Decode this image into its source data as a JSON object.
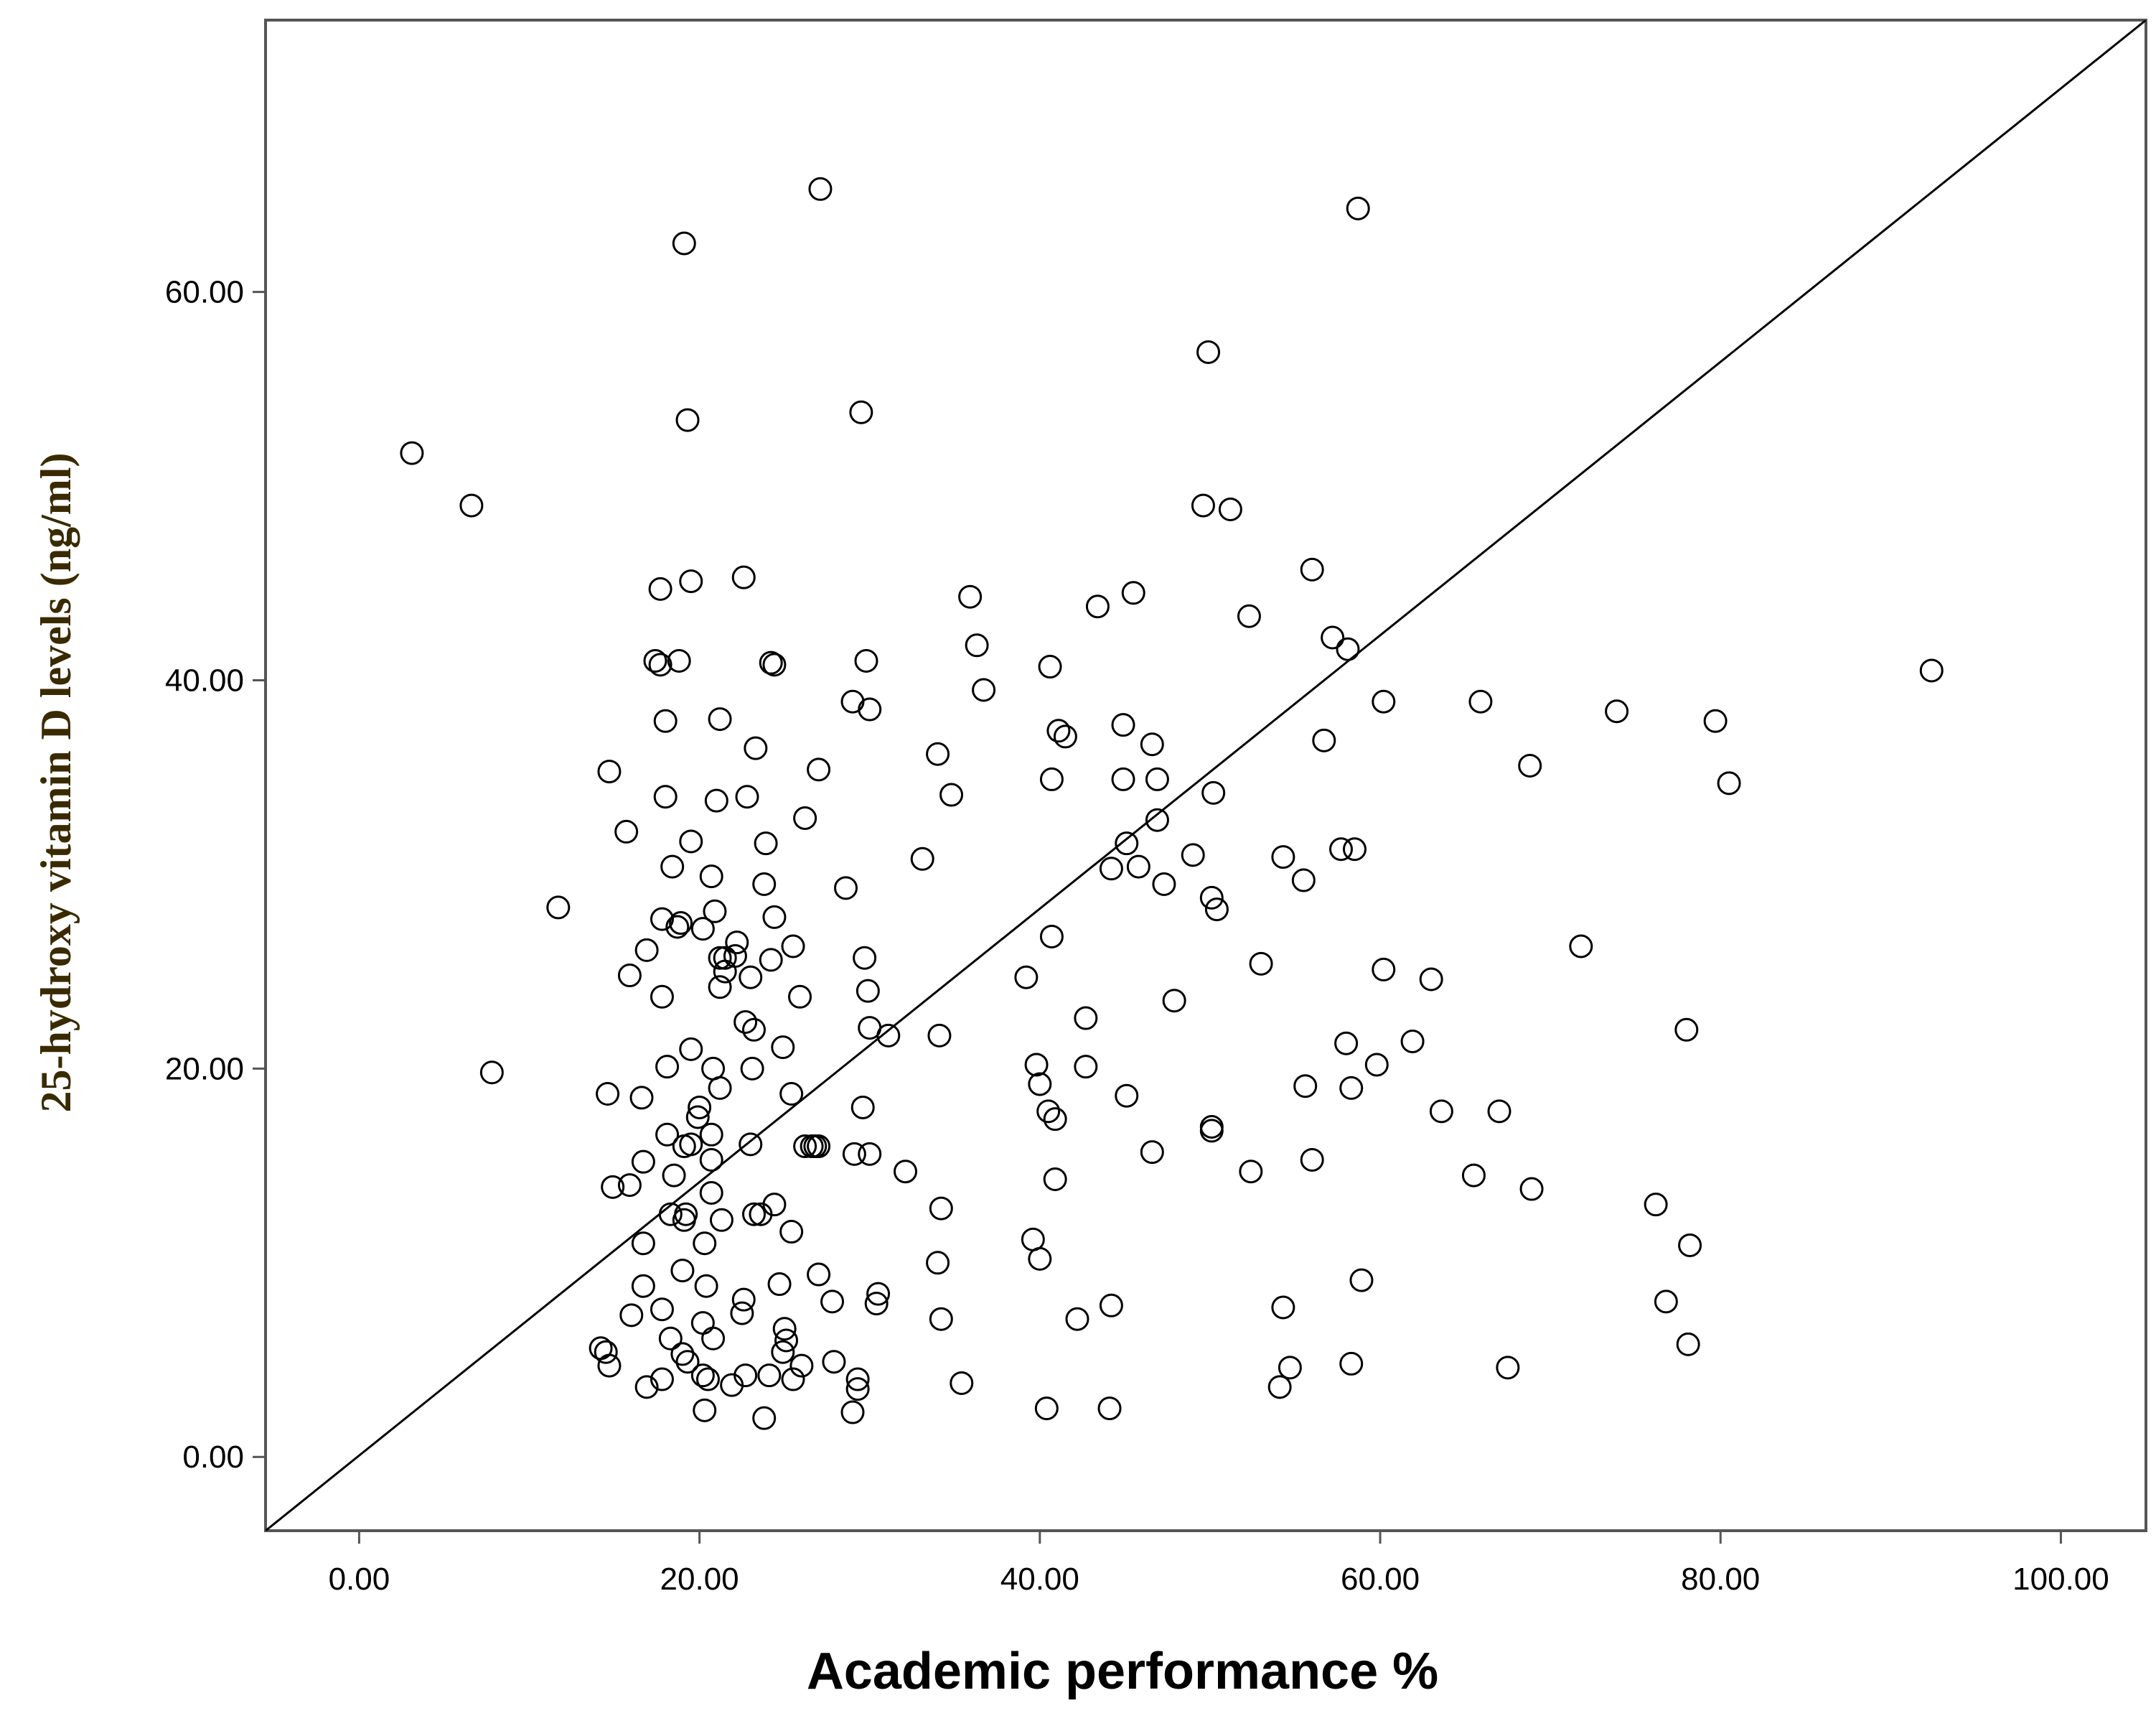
{
  "chart_data": {
    "type": "scatter",
    "xlabel": "Academic performance %",
    "ylabel": "25-hydroxy vitamin D levels (ng/ml)",
    "xlim": [
      -5.5,
      105
    ],
    "ylim": [
      -3.8,
      74
    ],
    "x_ticks": [
      0,
      20,
      40,
      60,
      80,
      100
    ],
    "x_tick_labels": [
      "0.00",
      "20.00",
      "40.00",
      "60.00",
      "80.00",
      "100.00"
    ],
    "y_ticks": [
      0,
      20,
      40,
      60
    ],
    "y_tick_labels": [
      "0.00",
      "20.00",
      "40.00",
      "60.00"
    ],
    "grid": false,
    "marker": "open-circle",
    "reference_line": {
      "from": [
        -5.5,
        -3.8
      ],
      "to": [
        105,
        74
      ]
    },
    "colors": {
      "marker_stroke": "#000000",
      "ylabel": "#3a2a00",
      "frame": "#555555"
    },
    "points": [
      [
        27.1,
        65.3
      ],
      [
        19.1,
        62.5
      ],
      [
        58.7,
        64.3
      ],
      [
        49.9,
        56.9
      ],
      [
        29.5,
        53.8
      ],
      [
        19.3,
        53.4
      ],
      [
        3.1,
        51.7
      ],
      [
        6.6,
        49.0
      ],
      [
        49.6,
        49.0
      ],
      [
        51.2,
        48.8
      ],
      [
        17.7,
        44.7
      ],
      [
        19.5,
        45.1
      ],
      [
        22.6,
        45.3
      ],
      [
        35.9,
        44.3
      ],
      [
        43.4,
        43.8
      ],
      [
        45.5,
        44.5
      ],
      [
        52.3,
        43.3
      ],
      [
        56.0,
        45.7
      ],
      [
        57.2,
        42.2
      ],
      [
        58.1,
        41.6
      ],
      [
        36.3,
        41.8
      ],
      [
        17.4,
        41.0
      ],
      [
        17.7,
        40.8
      ],
      [
        18.8,
        41.0
      ],
      [
        24.2,
        40.9
      ],
      [
        24.4,
        40.8
      ],
      [
        29.8,
        41.0
      ],
      [
        40.6,
        40.7
      ],
      [
        36.7,
        39.5
      ],
      [
        92.4,
        40.5
      ],
      [
        29.0,
        38.9
      ],
      [
        30.0,
        38.5
      ],
      [
        18.0,
        37.9
      ],
      [
        21.2,
        38.0
      ],
      [
        41.1,
        37.4
      ],
      [
        41.5,
        37.1
      ],
      [
        44.9,
        37.7
      ],
      [
        46.6,
        36.7
      ],
      [
        56.7,
        36.9
      ],
      [
        60.2,
        38.9
      ],
      [
        65.9,
        38.9
      ],
      [
        73.9,
        38.4
      ],
      [
        79.7,
        37.9
      ],
      [
        23.3,
        36.5
      ],
      [
        27.0,
        35.4
      ],
      [
        14.7,
        35.3
      ],
      [
        34.0,
        36.2
      ],
      [
        68.8,
        35.6
      ],
      [
        40.7,
        34.9
      ],
      [
        44.9,
        34.9
      ],
      [
        46.9,
        34.9
      ],
      [
        80.5,
        34.7
      ],
      [
        18.0,
        34.0
      ],
      [
        21.0,
        33.8
      ],
      [
        22.8,
        34.0
      ],
      [
        34.8,
        34.1
      ],
      [
        50.2,
        34.2
      ],
      [
        26.2,
        32.9
      ],
      [
        46.9,
        32.8
      ],
      [
        15.7,
        32.2
      ],
      [
        19.5,
        31.7
      ],
      [
        23.9,
        31.6
      ],
      [
        45.1,
        31.6
      ],
      [
        49.0,
        31.0
      ],
      [
        54.3,
        30.9
      ],
      [
        57.7,
        31.3
      ],
      [
        58.5,
        31.3
      ],
      [
        33.1,
        30.8
      ],
      [
        18.4,
        30.4
      ],
      [
        20.7,
        29.9
      ],
      [
        44.2,
        30.3
      ],
      [
        45.8,
        30.4
      ],
      [
        23.8,
        29.5
      ],
      [
        28.6,
        29.3
      ],
      [
        47.3,
        29.5
      ],
      [
        55.5,
        29.7
      ],
      [
        50.1,
        28.8
      ],
      [
        11.7,
        28.3
      ],
      [
        20.9,
        28.1
      ],
      [
        50.4,
        28.2
      ],
      [
        24.4,
        27.8
      ],
      [
        17.8,
        27.7
      ],
      [
        18.7,
        27.3
      ],
      [
        18.9,
        27.5
      ],
      [
        20.2,
        27.2
      ],
      [
        40.7,
        26.8
      ],
      [
        16.9,
        26.1
      ],
      [
        22.2,
        26.5
      ],
      [
        25.5,
        26.3
      ],
      [
        71.8,
        26.3
      ],
      [
        21.2,
        25.7
      ],
      [
        21.5,
        25.7
      ],
      [
        22.1,
        25.8
      ],
      [
        24.2,
        25.6
      ],
      [
        29.7,
        25.7
      ],
      [
        53.0,
        25.4
      ],
      [
        21.5,
        25.0
      ],
      [
        15.9,
        24.8
      ],
      [
        23.0,
        24.7
      ],
      [
        39.2,
        24.7
      ],
      [
        60.2,
        25.1
      ],
      [
        63.0,
        24.6
      ],
      [
        21.2,
        24.2
      ],
      [
        29.9,
        24.0
      ],
      [
        17.8,
        23.7
      ],
      [
        25.9,
        23.7
      ],
      [
        47.9,
        23.5
      ],
      [
        22.7,
        22.4
      ],
      [
        42.7,
        22.6
      ],
      [
        23.2,
        22.0
      ],
      [
        30.0,
        22.1
      ],
      [
        31.1,
        21.7
      ],
      [
        34.1,
        21.7
      ],
      [
        78.0,
        22.0
      ],
      [
        19.5,
        21.0
      ],
      [
        24.9,
        21.1
      ],
      [
        58.0,
        21.3
      ],
      [
        61.9,
        21.4
      ],
      [
        18.1,
        20.1
      ],
      [
        20.8,
        20.0
      ],
      [
        23.1,
        20.0
      ],
      [
        39.8,
        20.2
      ],
      [
        42.7,
        20.1
      ],
      [
        59.8,
        20.2
      ],
      [
        7.8,
        19.8
      ],
      [
        40.0,
        19.2
      ],
      [
        21.2,
        19.0
      ],
      [
        55.6,
        19.1
      ],
      [
        58.3,
        19.0
      ],
      [
        14.6,
        18.7
      ],
      [
        16.6,
        18.5
      ],
      [
        25.4,
        18.7
      ],
      [
        45.1,
        18.6
      ],
      [
        20.0,
        18.0
      ],
      [
        29.6,
        18.0
      ],
      [
        40.5,
        17.8
      ],
      [
        63.6,
        17.8
      ],
      [
        67.0,
        17.8
      ],
      [
        19.9,
        17.5
      ],
      [
        40.9,
        17.4
      ],
      [
        50.1,
        17.0
      ],
      [
        50.1,
        16.8
      ],
      [
        18.1,
        16.6
      ],
      [
        20.7,
        16.6
      ],
      [
        19.1,
        16.0
      ],
      [
        23.0,
        16.1
      ],
      [
        26.2,
        16.0
      ],
      [
        26.6,
        16.0
      ],
      [
        26.8,
        16.0
      ],
      [
        27.0,
        16.0
      ],
      [
        19.5,
        16.1
      ],
      [
        46.6,
        15.7
      ],
      [
        29.1,
        15.6
      ],
      [
        30.0,
        15.6
      ],
      [
        56.0,
        15.3
      ],
      [
        16.7,
        15.2
      ],
      [
        20.7,
        15.3
      ],
      [
        32.1,
        14.7
      ],
      [
        52.4,
        14.7
      ],
      [
        65.5,
        14.5
      ],
      [
        18.5,
        14.5
      ],
      [
        40.9,
        14.3
      ],
      [
        15.9,
        14.0
      ],
      [
        14.9,
        13.9
      ],
      [
        20.7,
        13.6
      ],
      [
        68.9,
        13.8
      ],
      [
        76.2,
        13.0
      ],
      [
        24.4,
        13.0
      ],
      [
        34.2,
        12.8
      ],
      [
        18.3,
        12.5
      ],
      [
        19.2,
        12.5
      ],
      [
        23.2,
        12.5
      ],
      [
        23.6,
        12.5
      ],
      [
        19.1,
        12.2
      ],
      [
        21.3,
        12.2
      ],
      [
        25.4,
        11.6
      ],
      [
        16.7,
        11.0
      ],
      [
        20.3,
        11.0
      ],
      [
        39.6,
        11.2
      ],
      [
        78.2,
        10.9
      ],
      [
        34.0,
        10.0
      ],
      [
        40.0,
        10.2
      ],
      [
        19.0,
        9.6
      ],
      [
        27.0,
        9.4
      ],
      [
        58.9,
        9.1
      ],
      [
        16.7,
        8.8
      ],
      [
        20.4,
        8.8
      ],
      [
        24.7,
        8.9
      ],
      [
        30.5,
        8.4
      ],
      [
        22.6,
        8.1
      ],
      [
        27.8,
        8.0
      ],
      [
        30.4,
        7.9
      ],
      [
        44.2,
        7.8
      ],
      [
        54.3,
        7.7
      ],
      [
        76.8,
        8.0
      ],
      [
        17.8,
        7.6
      ],
      [
        16.0,
        7.3
      ],
      [
        22.5,
        7.4
      ],
      [
        34.2,
        7.1
      ],
      [
        42.2,
        7.1
      ],
      [
        20.2,
        6.9
      ],
      [
        25.0,
        6.6
      ],
      [
        18.3,
        6.1
      ],
      [
        20.8,
        6.1
      ],
      [
        25.1,
        6.0
      ],
      [
        78.1,
        5.8
      ],
      [
        14.2,
        5.6
      ],
      [
        14.5,
        5.4
      ],
      [
        19.0,
        5.3
      ],
      [
        24.9,
        5.4
      ],
      [
        14.7,
        4.7
      ],
      [
        19.3,
        4.9
      ],
      [
        26.0,
        4.7
      ],
      [
        27.9,
        4.9
      ],
      [
        54.7,
        4.6
      ],
      [
        58.3,
        4.8
      ],
      [
        67.5,
        4.6
      ],
      [
        17.8,
        4.0
      ],
      [
        20.2,
        4.2
      ],
      [
        20.5,
        4.0
      ],
      [
        22.7,
        4.2
      ],
      [
        24.1,
        4.2
      ],
      [
        25.5,
        4.0
      ],
      [
        29.3,
        4.0
      ],
      [
        16.9,
        3.6
      ],
      [
        21.9,
        3.7
      ],
      [
        29.3,
        3.5
      ],
      [
        35.4,
        3.8
      ],
      [
        54.1,
        3.6
      ],
      [
        20.3,
        2.4
      ],
      [
        23.8,
        2.0
      ],
      [
        29.0,
        2.3
      ],
      [
        40.4,
        2.5
      ],
      [
        44.1,
        2.5
      ]
    ]
  }
}
